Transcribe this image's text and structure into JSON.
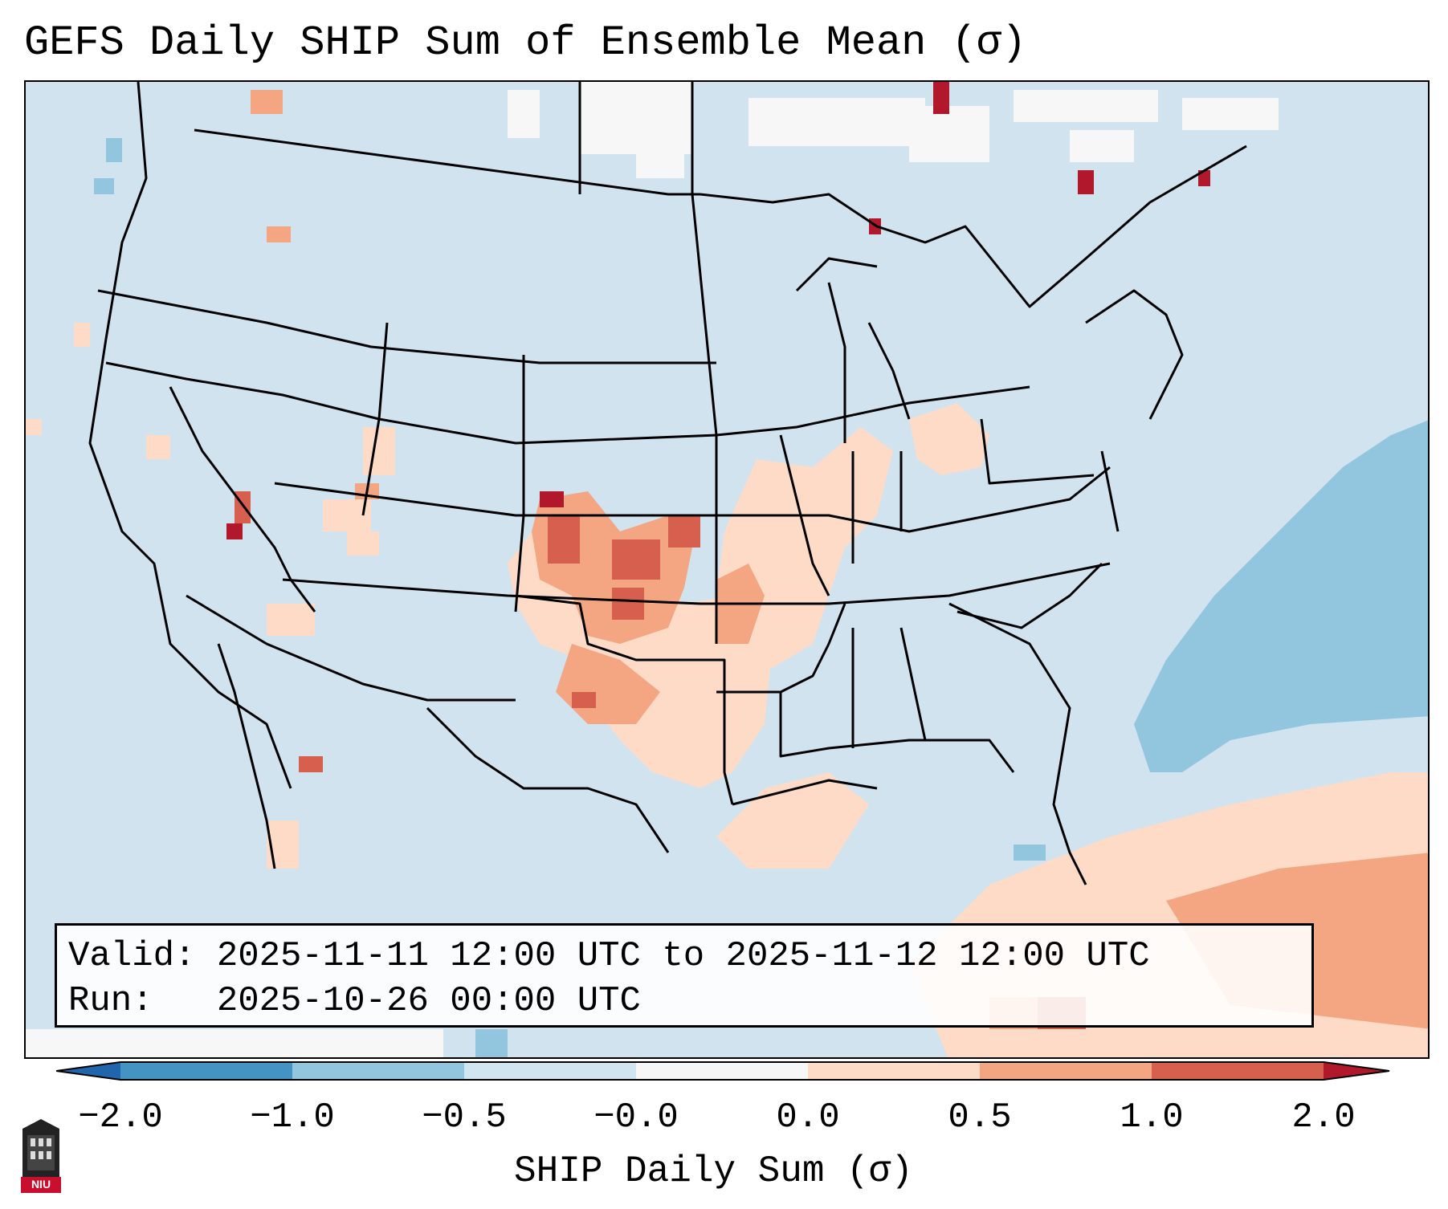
{
  "title": "GEFS Daily SHIP Sum of Ensemble Mean (σ)",
  "info": {
    "valid_label": "Valid:",
    "valid_value": "2025-11-11 12:00 UTC to 2025-11-12 12:00 UTC",
    "run_label": "Run:  ",
    "run_value": "2025-10-26 00:00 UTC"
  },
  "colorbar": {
    "label": "SHIP Daily Sum (σ)",
    "ticks": [
      "−2.0",
      "−1.0",
      "−0.5",
      "−0.0",
      "0.0",
      "0.5",
      "1.0",
      "2.0"
    ],
    "bins": [
      {
        "from": "<-2.0",
        "color": "#2166ac"
      },
      {
        "from": "-2.0 to -1.0",
        "color": "#4393c3"
      },
      {
        "from": "-1.0 to -0.5",
        "color": "#92c5de"
      },
      {
        "from": "-0.5 to -0.0",
        "color": "#d1e5f0"
      },
      {
        "from": "-0.0 to 0.0",
        "color": "#f7f7f7"
      },
      {
        "from": "0.0 to 0.5",
        "color": "#fddbc7"
      },
      {
        "from": "0.5 to 1.0",
        "color": "#f4a582"
      },
      {
        "from": "1.0 to 2.0",
        "color": "#d6604d"
      },
      {
        "from": ">2.0",
        "color": "#b2182b"
      }
    ]
  },
  "logo_text": "NIU",
  "colors": {
    "background_sigma": "#d0e3ef",
    "state_lines": "#000000"
  }
}
